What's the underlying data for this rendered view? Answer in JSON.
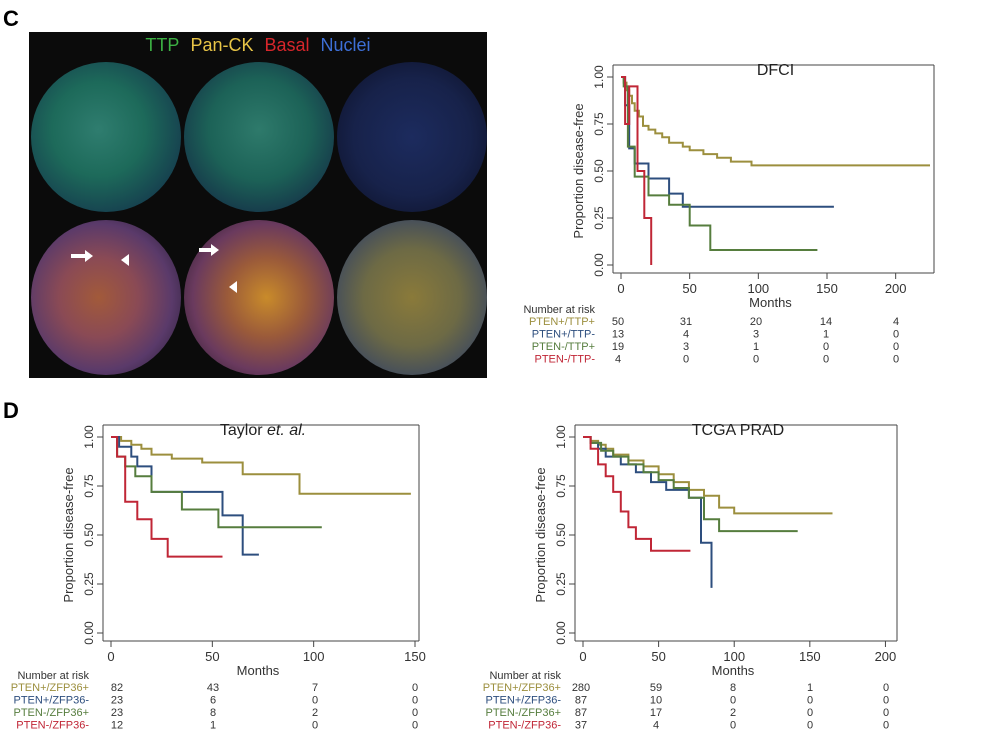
{
  "panels": {
    "c": "C",
    "d": "D"
  },
  "micrograph": {
    "legend": [
      {
        "label": "TTP",
        "color": "#3cb043"
      },
      {
        "label": "Pan-CK",
        "color": "#e8c547"
      },
      {
        "label": "Basal",
        "color": "#d7262b"
      },
      {
        "label": "Nuclei",
        "color": "#3d6fd6"
      }
    ]
  },
  "chart_data": [
    {
      "type": "line",
      "id": "dfci",
      "title": "DFCI",
      "title_parts": [
        {
          "text": "DFCI",
          "italic": false
        }
      ],
      "xlabel": "Months",
      "ylabel": "Proportion disease-free",
      "xlim": [
        0,
        225
      ],
      "ylim": [
        0,
        1
      ],
      "xticks": [
        0,
        50,
        100,
        150,
        200
      ],
      "yticks": [
        0.0,
        0.25,
        0.5,
        0.75,
        1.0
      ],
      "ytick_labels": [
        "0.00",
        "0.25",
        "0.50",
        "0.75",
        "1.00"
      ],
      "yaxis_top_offset": 0,
      "series": [
        {
          "name": "PTEN+/TTP+",
          "color": "#9c8f3e",
          "x": [
            0,
            2,
            2,
            4,
            4,
            6,
            6,
            8,
            8,
            10,
            10,
            13,
            13,
            16,
            16,
            20,
            20,
            25,
            25,
            30,
            30,
            35,
            35,
            45,
            45,
            50,
            50,
            60,
            60,
            70,
            70,
            80,
            80,
            95,
            95,
            225
          ],
          "y": [
            1,
            1,
            0.97,
            0.97,
            0.93,
            0.93,
            0.9,
            0.9,
            0.86,
            0.86,
            0.82,
            0.82,
            0.79,
            0.79,
            0.74,
            0.74,
            0.72,
            0.72,
            0.7,
            0.7,
            0.68,
            0.68,
            0.65,
            0.65,
            0.63,
            0.63,
            0.61,
            0.61,
            0.59,
            0.59,
            0.57,
            0.57,
            0.55,
            0.55,
            0.53,
            0.53
          ]
        },
        {
          "name": "PTEN+/TTP-",
          "color": "#2d4e7e",
          "x": [
            0,
            3,
            3,
            6,
            6,
            10,
            10,
            20,
            20,
            35,
            35,
            45,
            45,
            155
          ],
          "y": [
            1,
            1,
            0.85,
            0.85,
            0.62,
            0.62,
            0.54,
            0.54,
            0.46,
            0.46,
            0.38,
            0.38,
            0.31,
            0.31
          ]
        },
        {
          "name": "PTEN-/TTP+",
          "color": "#567d3e",
          "x": [
            0,
            2,
            2,
            5,
            5,
            10,
            10,
            20,
            20,
            35,
            35,
            50,
            50,
            65,
            65,
            143
          ],
          "y": [
            1,
            1,
            0.95,
            0.95,
            0.63,
            0.63,
            0.47,
            0.47,
            0.37,
            0.37,
            0.32,
            0.32,
            0.21,
            0.21,
            0.08,
            0.08
          ]
        },
        {
          "name": "PTEN-/TTP-",
          "color": "#c02636",
          "x": [
            0,
            3,
            3,
            6,
            6,
            12,
            12,
            17,
            17,
            22,
            22
          ],
          "y": [
            1,
            1,
            0.75,
            0.75,
            0.95,
            0.95,
            0.5,
            0.5,
            0.25,
            0.25,
            0
          ]
        }
      ],
      "risk_table": {
        "header": "Number at risk",
        "rows": [
          {
            "label": "PTEN+/TTP+",
            "color": "#9c8f3e",
            "values": [
              "50",
              "31",
              "20",
              "14",
              "4"
            ]
          },
          {
            "label": "PTEN+/TTP-",
            "color": "#2d4e7e",
            "values": [
              "13",
              "4",
              "3",
              "1",
              "0"
            ]
          },
          {
            "label": "PTEN-/TTP+",
            "color": "#567d3e",
            "values": [
              "19",
              "3",
              "1",
              "0",
              "0"
            ]
          },
          {
            "label": "PTEN-/TTP-",
            "color": "#c02636",
            "values": [
              "4",
              "0",
              "0",
              "0",
              "0"
            ]
          }
        ]
      }
    },
    {
      "type": "line",
      "id": "taylor",
      "title": "Taylor et. al.",
      "title_parts": [
        {
          "text": "Taylor ",
          "italic": false
        },
        {
          "text": "et. al.",
          "italic": true
        }
      ],
      "xlabel": "Months",
      "ylabel": "Proportion disease-free",
      "xlim": [
        0,
        150
      ],
      "ylim": [
        0,
        1
      ],
      "xticks": [
        0,
        50,
        100,
        150
      ],
      "yticks": [
        0.0,
        0.25,
        0.5,
        0.75,
        1.0
      ],
      "ytick_labels": [
        "0.00",
        "0.25",
        "0.50",
        "0.75",
        "1.00"
      ],
      "series": [
        {
          "name": "PTEN+/ZFP36+",
          "color": "#9c8f3e",
          "x": [
            0,
            5,
            5,
            10,
            10,
            15,
            15,
            20,
            20,
            30,
            30,
            45,
            45,
            65,
            65,
            93,
            93,
            148
          ],
          "y": [
            1,
            1,
            0.98,
            0.98,
            0.96,
            0.96,
            0.94,
            0.94,
            0.91,
            0.91,
            0.89,
            0.89,
            0.87,
            0.87,
            0.81,
            0.81,
            0.71,
            0.71
          ]
        },
        {
          "name": "PTEN+/ZFP36-",
          "color": "#2d4e7e",
          "x": [
            0,
            4,
            4,
            10,
            10,
            13,
            13,
            20,
            20,
            55,
            55,
            65,
            65,
            73
          ],
          "y": [
            1,
            1,
            0.95,
            0.95,
            0.9,
            0.9,
            0.85,
            0.85,
            0.72,
            0.72,
            0.6,
            0.6,
            0.4,
            0.4
          ]
        },
        {
          "name": "PTEN-/ZFP36+",
          "color": "#567d3e",
          "x": [
            0,
            3,
            3,
            7,
            7,
            12,
            12,
            20,
            20,
            35,
            35,
            53,
            53,
            104
          ],
          "y": [
            1,
            1,
            0.9,
            0.9,
            0.85,
            0.85,
            0.8,
            0.8,
            0.72,
            0.72,
            0.63,
            0.63,
            0.54,
            0.54
          ]
        },
        {
          "name": "PTEN-/ZFP36-",
          "color": "#c02636",
          "x": [
            0,
            3,
            3,
            7,
            7,
            13,
            13,
            20,
            20,
            28,
            28,
            55
          ],
          "y": [
            1,
            1,
            0.9,
            0.9,
            0.67,
            0.67,
            0.58,
            0.58,
            0.48,
            0.48,
            0.39,
            0.39
          ]
        }
      ],
      "risk_table": {
        "header": "Number at risk",
        "rows": [
          {
            "label": "PTEN+/ZFP36+",
            "color": "#9c8f3e",
            "values": [
              "82",
              "43",
              "7",
              "0"
            ]
          },
          {
            "label": "PTEN+/ZFP36-",
            "color": "#2d4e7e",
            "values": [
              "23",
              "6",
              "0",
              "0"
            ]
          },
          {
            "label": "PTEN-/ZFP36+",
            "color": "#567d3e",
            "values": [
              "23",
              "8",
              "2",
              "0"
            ]
          },
          {
            "label": "PTEN-/ZFP36-",
            "color": "#c02636",
            "values": [
              "12",
              "1",
              "0",
              "0"
            ]
          }
        ]
      }
    },
    {
      "type": "line",
      "id": "tcga",
      "title": "TCGA PRAD",
      "title_parts": [
        {
          "text": "TCGA PRAD",
          "italic": false
        }
      ],
      "xlabel": "Months",
      "ylabel": "Proportion disease-free",
      "xlim": [
        0,
        205
      ],
      "ylim": [
        0,
        1
      ],
      "xticks": [
        0,
        50,
        100,
        150,
        200
      ],
      "yticks": [
        0.0,
        0.25,
        0.5,
        0.75,
        1.0
      ],
      "ytick_labels": [
        "0.00",
        "0.25",
        "0.50",
        "0.75",
        "1.00"
      ],
      "series": [
        {
          "name": "PTEN+/ZFP36+",
          "color": "#9c8f3e",
          "x": [
            0,
            5,
            5,
            10,
            10,
            15,
            15,
            20,
            20,
            30,
            30,
            40,
            40,
            50,
            50,
            60,
            60,
            70,
            70,
            80,
            80,
            90,
            90,
            100,
            100,
            165
          ],
          "y": [
            1,
            1,
            0.98,
            0.98,
            0.96,
            0.96,
            0.94,
            0.94,
            0.91,
            0.91,
            0.88,
            0.88,
            0.85,
            0.85,
            0.81,
            0.81,
            0.77,
            0.77,
            0.73,
            0.73,
            0.7,
            0.7,
            0.64,
            0.64,
            0.61,
            0.61
          ]
        },
        {
          "name": "PTEN+/ZFP36-",
          "color": "#2d4e7e",
          "x": [
            0,
            5,
            5,
            10,
            10,
            15,
            15,
            25,
            25,
            35,
            35,
            45,
            45,
            55,
            55,
            70,
            70,
            78,
            78,
            85,
            85
          ],
          "y": [
            1,
            1,
            0.97,
            0.97,
            0.94,
            0.94,
            0.9,
            0.9,
            0.86,
            0.86,
            0.82,
            0.82,
            0.77,
            0.77,
            0.73,
            0.73,
            0.69,
            0.69,
            0.46,
            0.46,
            0.23
          ]
        },
        {
          "name": "PTEN-/ZFP36+",
          "color": "#567d3e",
          "x": [
            0,
            5,
            5,
            12,
            12,
            20,
            20,
            30,
            30,
            40,
            40,
            50,
            50,
            60,
            60,
            70,
            70,
            80,
            80,
            90,
            90,
            142
          ],
          "y": [
            1,
            1,
            0.97,
            0.97,
            0.93,
            0.93,
            0.9,
            0.9,
            0.86,
            0.86,
            0.82,
            0.82,
            0.78,
            0.78,
            0.74,
            0.74,
            0.69,
            0.69,
            0.58,
            0.58,
            0.52,
            0.52
          ]
        },
        {
          "name": "PTEN-/ZFP36-",
          "color": "#c02636",
          "x": [
            0,
            5,
            5,
            10,
            10,
            15,
            15,
            20,
            20,
            25,
            25,
            30,
            30,
            35,
            35,
            45,
            45,
            71
          ],
          "y": [
            1,
            1,
            0.94,
            0.94,
            0.86,
            0.86,
            0.8,
            0.8,
            0.72,
            0.72,
            0.62,
            0.62,
            0.54,
            0.54,
            0.48,
            0.48,
            0.42,
            0.42
          ]
        }
      ],
      "risk_table": {
        "header": "Number at risk",
        "rows": [
          {
            "label": "PTEN+/ZFP36+",
            "color": "#9c8f3e",
            "values": [
              "280",
              "59",
              "8",
              "1",
              "0"
            ]
          },
          {
            "label": "PTEN+/ZFP36-",
            "color": "#2d4e7e",
            "values": [
              "87",
              "10",
              "0",
              "0",
              "0"
            ]
          },
          {
            "label": "PTEN-/ZFP36+",
            "color": "#567d3e",
            "values": [
              "87",
              "17",
              "2",
              "0",
              "0"
            ]
          },
          {
            "label": "PTEN-/ZFP36-",
            "color": "#c02636",
            "values": [
              "37",
              "4",
              "0",
              "0",
              "0"
            ]
          }
        ]
      }
    }
  ]
}
